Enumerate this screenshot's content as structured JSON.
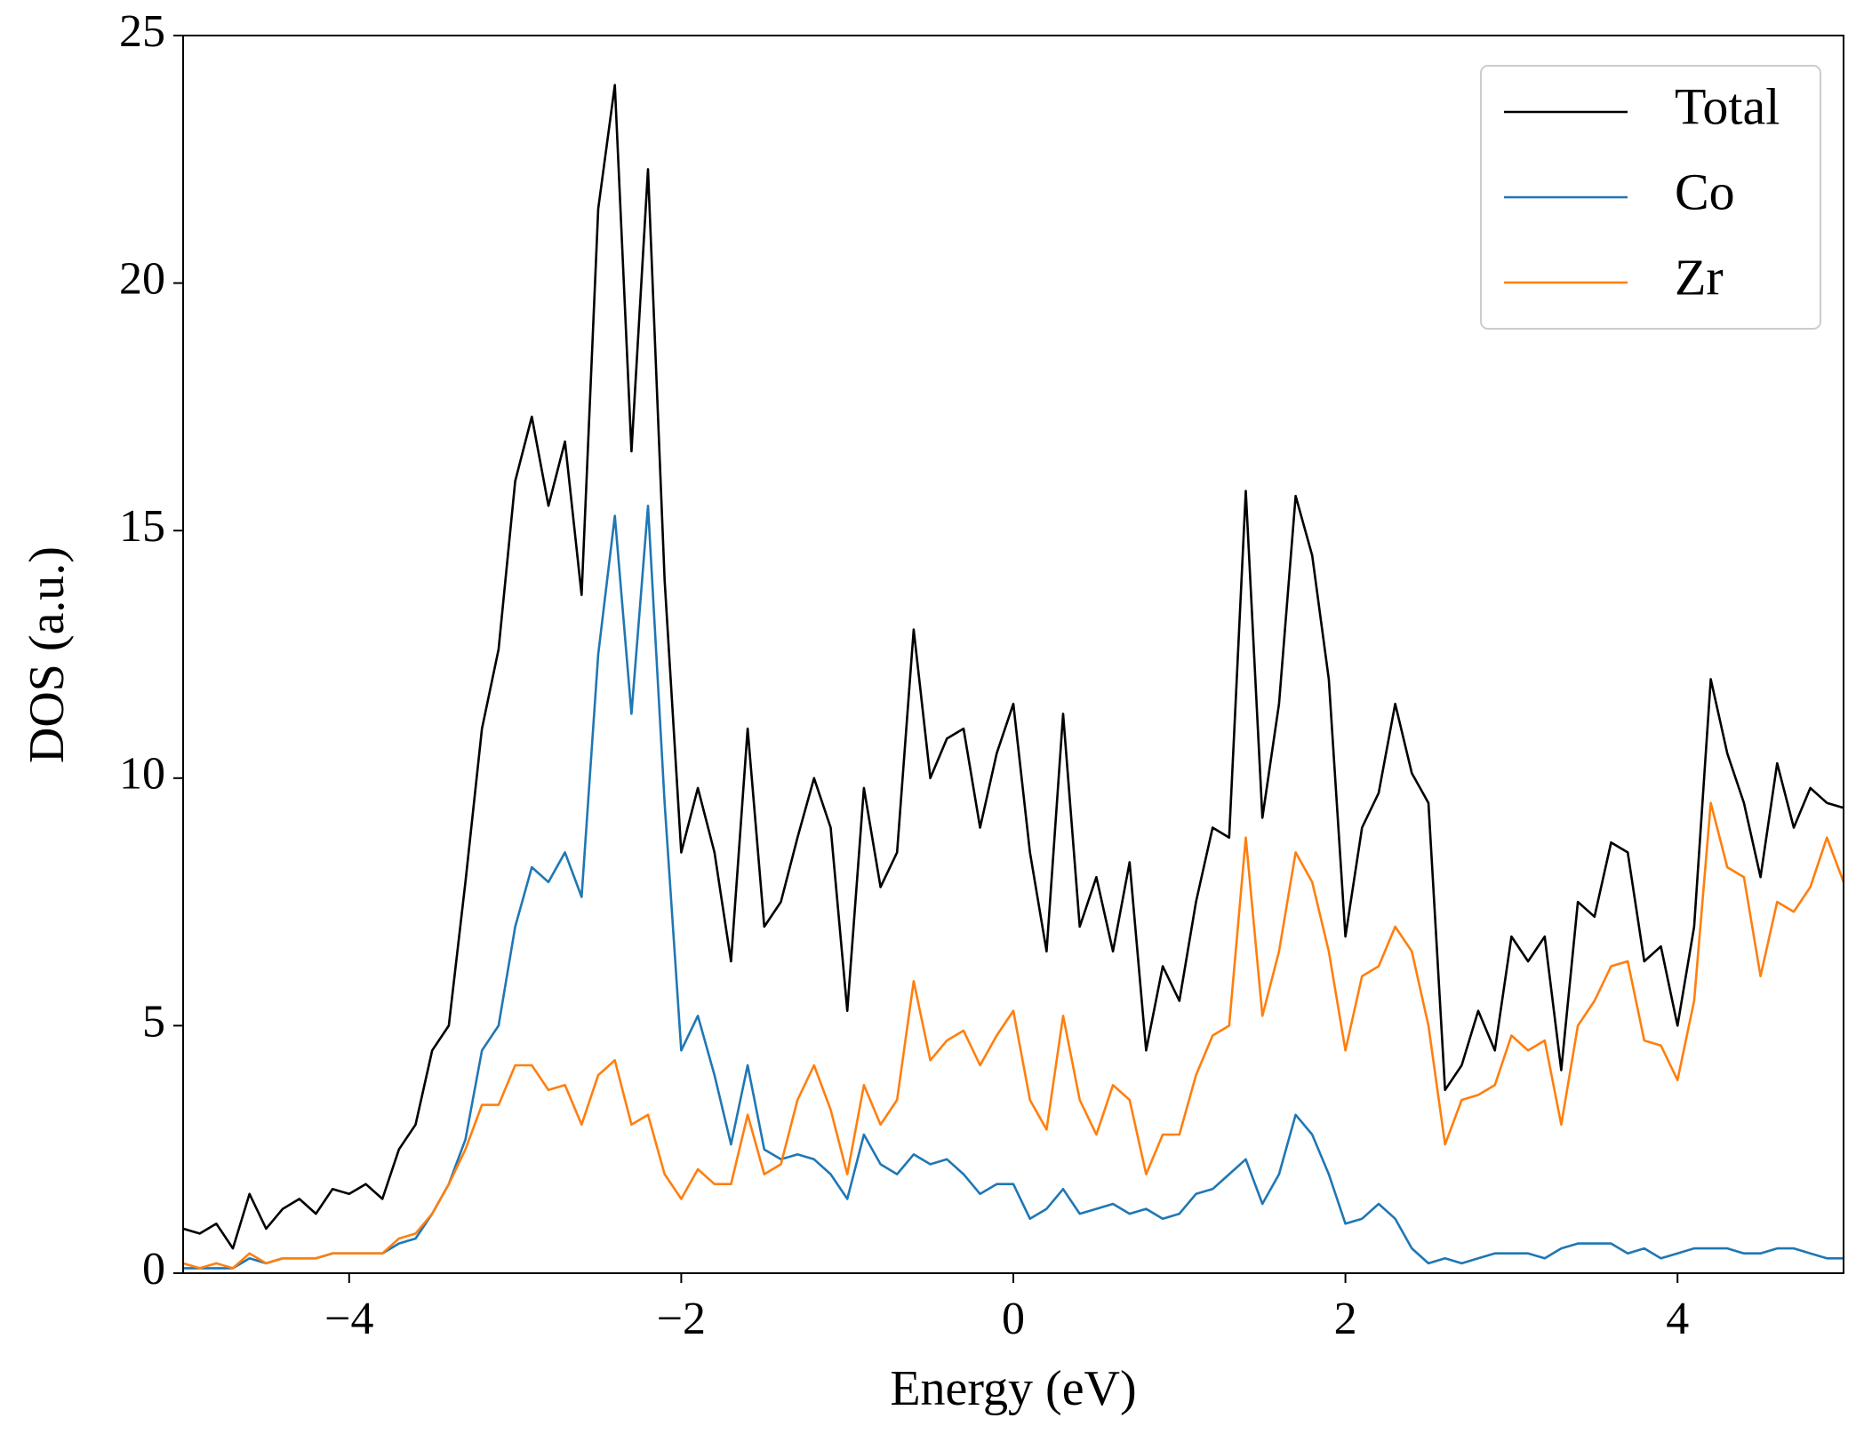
{
  "chart_data": {
    "type": "line",
    "xlabel": "Energy (eV)",
    "ylabel": "DOS (a.u.)",
    "x": [
      -5.0,
      -4.9,
      -4.8,
      -4.7,
      -4.6,
      -4.5,
      -4.4,
      -4.3,
      -4.2,
      -4.1,
      -4.0,
      -3.9,
      -3.8,
      -3.7,
      -3.6,
      -3.5,
      -3.4,
      -3.3,
      -3.2,
      -3.1,
      -3.0,
      -2.9,
      -2.8,
      -2.7,
      -2.6,
      -2.5,
      -2.4,
      -2.3,
      -2.2,
      -2.1,
      -2.0,
      -1.9,
      -1.8,
      -1.7,
      -1.6,
      -1.5,
      -1.4,
      -1.3,
      -1.2,
      -1.1,
      -1.0,
      -0.9,
      -0.8,
      -0.7,
      -0.6,
      -0.5,
      -0.4,
      -0.3,
      -0.2,
      -0.1,
      0.0,
      0.1,
      0.2,
      0.3,
      0.4,
      0.5,
      0.6,
      0.7,
      0.8,
      0.9,
      1.0,
      1.1,
      1.2,
      1.3,
      1.4,
      1.5,
      1.6,
      1.7,
      1.8,
      1.9,
      2.0,
      2.1,
      2.2,
      2.3,
      2.4,
      2.5,
      2.6,
      2.7,
      2.8,
      2.9,
      3.0,
      3.1,
      3.2,
      3.3,
      3.4,
      3.5,
      3.6,
      3.7,
      3.8,
      3.9,
      4.0,
      4.1,
      4.2,
      4.3,
      4.4,
      4.5,
      4.6,
      4.7,
      4.8,
      4.9,
      5.0
    ],
    "series": [
      {
        "name": "Total",
        "color": "#000000",
        "values": [
          0.9,
          0.8,
          1.0,
          0.5,
          1.6,
          0.9,
          1.3,
          1.5,
          1.2,
          1.7,
          1.6,
          1.8,
          1.5,
          2.5,
          3.0,
          4.5,
          5.0,
          7.9,
          11.0,
          12.6,
          16.0,
          17.3,
          15.5,
          16.8,
          13.7,
          21.5,
          24.0,
          16.6,
          22.3,
          14.0,
          8.5,
          9.8,
          8.5,
          6.3,
          11.0,
          7.0,
          7.5,
          8.8,
          10.0,
          9.0,
          5.3,
          9.8,
          7.8,
          8.5,
          13.0,
          10.0,
          10.8,
          11.0,
          9.0,
          10.5,
          11.5,
          8.5,
          6.5,
          11.3,
          7.0,
          8.0,
          6.5,
          8.3,
          4.5,
          6.2,
          5.5,
          7.5,
          9.0,
          8.8,
          15.8,
          9.2,
          11.5,
          15.7,
          14.5,
          12.0,
          6.8,
          9.0,
          9.7,
          11.5,
          10.1,
          9.5,
          3.7,
          4.2,
          5.3,
          4.5,
          6.8,
          6.3,
          6.8,
          4.1,
          7.5,
          7.2,
          8.7,
          8.5,
          6.3,
          6.6,
          5.0,
          7.0,
          12.0,
          10.5,
          9.5,
          8.0,
          10.3,
          9.0,
          9.8,
          9.5,
          9.4
        ]
      },
      {
        "name": "Co",
        "color": "#1f77b4",
        "values": [
          0.1,
          0.1,
          0.1,
          0.1,
          0.3,
          0.2,
          0.3,
          0.3,
          0.3,
          0.4,
          0.4,
          0.4,
          0.4,
          0.6,
          0.7,
          1.2,
          1.8,
          2.7,
          4.5,
          5.0,
          7.0,
          8.2,
          7.9,
          8.5,
          7.6,
          12.5,
          15.3,
          11.3,
          15.5,
          9.5,
          4.5,
          5.2,
          4.0,
          2.6,
          4.2,
          2.5,
          2.3,
          2.4,
          2.3,
          2.0,
          1.5,
          2.8,
          2.2,
          2.0,
          2.4,
          2.2,
          2.3,
          2.0,
          1.6,
          1.8,
          1.8,
          1.1,
          1.3,
          1.7,
          1.2,
          1.3,
          1.4,
          1.2,
          1.3,
          1.1,
          1.2,
          1.6,
          1.7,
          2.0,
          2.3,
          1.4,
          2.0,
          3.2,
          2.8,
          2.0,
          1.0,
          1.1,
          1.4,
          1.1,
          0.5,
          0.2,
          0.3,
          0.2,
          0.3,
          0.4,
          0.4,
          0.4,
          0.3,
          0.5,
          0.6,
          0.6,
          0.6,
          0.4,
          0.5,
          0.3,
          0.4,
          0.5,
          0.5,
          0.5,
          0.4,
          0.4,
          0.5,
          0.5,
          0.4,
          0.3,
          0.3
        ]
      },
      {
        "name": "Zr",
        "color": "#ff7f0e",
        "values": [
          0.2,
          0.1,
          0.2,
          0.1,
          0.4,
          0.2,
          0.3,
          0.3,
          0.3,
          0.4,
          0.4,
          0.4,
          0.4,
          0.7,
          0.8,
          1.2,
          1.8,
          2.5,
          3.4,
          3.4,
          4.2,
          4.2,
          3.7,
          3.8,
          3.0,
          4.0,
          4.3,
          3.0,
          3.2,
          2.0,
          1.5,
          2.1,
          1.8,
          1.8,
          3.2,
          2.0,
          2.2,
          3.5,
          4.2,
          3.3,
          2.0,
          3.8,
          3.0,
          3.5,
          5.9,
          4.3,
          4.7,
          4.9,
          4.2,
          4.8,
          5.3,
          3.5,
          2.9,
          5.2,
          3.5,
          2.8,
          3.8,
          3.5,
          2.0,
          2.8,
          2.8,
          4.0,
          4.8,
          5.0,
          8.8,
          5.2,
          6.5,
          8.5,
          7.9,
          6.5,
          4.5,
          6.0,
          6.2,
          7.0,
          6.5,
          5.0,
          2.6,
          3.5,
          3.6,
          3.8,
          4.8,
          4.5,
          4.7,
          3.0,
          5.0,
          5.5,
          6.2,
          6.3,
          4.7,
          4.6,
          3.9,
          5.5,
          9.5,
          8.2,
          8.0,
          6.0,
          7.5,
          7.3,
          7.8,
          8.8,
          7.9
        ]
      }
    ],
    "xlim": [
      -5,
      5
    ],
    "xticks": [
      {
        "value": -4,
        "label": "−4"
      },
      {
        "value": -2,
        "label": "−2"
      },
      0,
      2,
      4
    ],
    "ylim": [
      0,
      25
    ],
    "yticks": [
      0,
      5,
      10,
      15,
      20,
      25
    ],
    "grid": false,
    "legend": "upper right"
  }
}
